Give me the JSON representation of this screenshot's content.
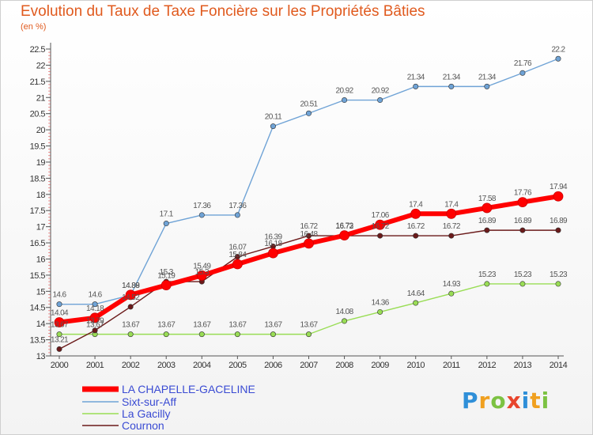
{
  "chart_data": {
    "type": "line",
    "title": "Evolution du Taux de Taxe Foncière sur les Propriétés Bâties",
    "subtitle": "(en %)",
    "x": [
      "2000",
      "2001",
      "2002",
      "2003",
      "2004",
      "2005",
      "2006",
      "2007",
      "2008",
      "2009",
      "2010",
      "2011",
      "2012",
      "2013",
      "2014"
    ],
    "ylim": [
      13,
      22.5
    ],
    "yticks": [
      "13",
      "13.5",
      "14",
      "14.5",
      "15",
      "15.5",
      "16",
      "16.5",
      "17",
      "17.5",
      "18",
      "18.5",
      "19",
      "19.5",
      "20",
      "20.5",
      "21",
      "21.5",
      "22",
      "22.5"
    ],
    "grid": false,
    "legend_position": "bottom-left",
    "series": [
      {
        "name": "LA CHAPELLE-GACELINE",
        "color": "#ff0000",
        "values": [
          14.04,
          14.18,
          14.89,
          15.19,
          15.49,
          15.84,
          16.18,
          16.48,
          16.73,
          17.06,
          17.4,
          17.4,
          17.58,
          17.76,
          17.94
        ]
      },
      {
        "name": "Sixt-sur-Aff",
        "color": "#6fa3d6",
        "values": [
          14.6,
          14.6,
          14.88,
          17.1,
          17.36,
          17.36,
          20.11,
          20.51,
          20.92,
          20.92,
          21.34,
          21.34,
          21.34,
          21.76,
          22.2
        ]
      },
      {
        "name": "La Gacilly",
        "color": "#99dd55",
        "values": [
          13.67,
          13.67,
          13.67,
          13.67,
          13.67,
          13.67,
          13.67,
          13.67,
          14.08,
          14.36,
          14.64,
          14.93,
          15.23,
          15.23,
          15.23
        ]
      },
      {
        "name": "Cournon",
        "color": "#6b1a1a",
        "values": [
          13.21,
          13.79,
          14.52,
          15.3,
          15.3,
          16.07,
          16.39,
          16.72,
          16.72,
          16.72,
          16.72,
          16.72,
          16.89,
          16.89,
          16.89
        ]
      }
    ],
    "data_labels": [
      {
        "series": 1,
        "i": 0,
        "text": "14.6"
      },
      {
        "series": 1,
        "i": 1,
        "text": "14.6"
      },
      {
        "series": 1,
        "i": 2,
        "text": "14.88"
      },
      {
        "series": 1,
        "i": 3,
        "text": "17.1"
      },
      {
        "series": 1,
        "i": 4,
        "text": "17.36"
      },
      {
        "series": 1,
        "i": 5,
        "text": "17.36"
      },
      {
        "series": 1,
        "i": 6,
        "text": "20.11"
      },
      {
        "series": 1,
        "i": 7,
        "text": "20.51"
      },
      {
        "series": 1,
        "i": 8,
        "text": "20.92"
      },
      {
        "series": 1,
        "i": 9,
        "text": "20.92"
      },
      {
        "series": 1,
        "i": 10,
        "text": "21.34"
      },
      {
        "series": 1,
        "i": 11,
        "text": "21.34"
      },
      {
        "series": 1,
        "i": 12,
        "text": "21.34"
      },
      {
        "series": 1,
        "i": 13,
        "text": "21.76"
      },
      {
        "series": 1,
        "i": 14,
        "text": "22.2"
      },
      {
        "series": 0,
        "i": 0,
        "text": "14.04"
      },
      {
        "series": 0,
        "i": 1,
        "text": "14.18"
      },
      {
        "series": 0,
        "i": 2,
        "text": "14.89"
      },
      {
        "series": 0,
        "i": 3,
        "text": "15.19"
      },
      {
        "series": 0,
        "i": 4,
        "text": "15.49"
      },
      {
        "series": 0,
        "i": 5,
        "text": "15.84"
      },
      {
        "series": 0,
        "i": 6,
        "text": "16.18"
      },
      {
        "series": 0,
        "i": 7,
        "text": "16.48"
      },
      {
        "series": 0,
        "i": 8,
        "text": "16.73"
      },
      {
        "series": 0,
        "i": 9,
        "text": "17.06"
      },
      {
        "series": 0,
        "i": 10,
        "text": "17.4"
      },
      {
        "series": 0,
        "i": 11,
        "text": "17.4"
      },
      {
        "series": 0,
        "i": 12,
        "text": "17.58"
      },
      {
        "series": 0,
        "i": 13,
        "text": "17.76"
      },
      {
        "series": 0,
        "i": 14,
        "text": "17.94"
      },
      {
        "series": 3,
        "i": 0,
        "text": "13.21"
      },
      {
        "series": 3,
        "i": 1,
        "text": "13.79"
      },
      {
        "series": 3,
        "i": 2,
        "text": "14.52"
      },
      {
        "series": 3,
        "i": 3,
        "text": "15.3"
      },
      {
        "series": 3,
        "i": 4,
        "text": "15.3"
      },
      {
        "series": 3,
        "i": 5,
        "text": "16.07"
      },
      {
        "series": 3,
        "i": 6,
        "text": "16.39"
      },
      {
        "series": 3,
        "i": 7,
        "text": "16.72"
      },
      {
        "series": 3,
        "i": 8,
        "text": "16.72"
      },
      {
        "series": 3,
        "i": 9,
        "text": "16.72"
      },
      {
        "series": 3,
        "i": 10,
        "text": "16.72"
      },
      {
        "series": 3,
        "i": 11,
        "text": "16.72"
      },
      {
        "series": 3,
        "i": 12,
        "text": "16.89"
      },
      {
        "series": 3,
        "i": 13,
        "text": "16.89"
      },
      {
        "series": 3,
        "i": 14,
        "text": "16.89"
      },
      {
        "series": 2,
        "i": 0,
        "text": "13.67"
      },
      {
        "series": 2,
        "i": 1,
        "text": "13.67"
      },
      {
        "series": 2,
        "i": 2,
        "text": "13.67"
      },
      {
        "series": 2,
        "i": 3,
        "text": "13.67"
      },
      {
        "series": 2,
        "i": 4,
        "text": "13.67"
      },
      {
        "series": 2,
        "i": 5,
        "text": "13.67"
      },
      {
        "series": 2,
        "i": 6,
        "text": "13.67"
      },
      {
        "series": 2,
        "i": 7,
        "text": "13.67"
      },
      {
        "series": 2,
        "i": 8,
        "text": "14.08"
      },
      {
        "series": 2,
        "i": 9,
        "text": "14.36"
      },
      {
        "series": 2,
        "i": 10,
        "text": "14.64"
      },
      {
        "series": 2,
        "i": 11,
        "text": "14.93"
      },
      {
        "series": 2,
        "i": 12,
        "text": "15.23"
      },
      {
        "series": 2,
        "i": 13,
        "text": "15.23"
      },
      {
        "series": 2,
        "i": 14,
        "text": "15.23"
      }
    ]
  },
  "logo": {
    "letters": [
      "P",
      "r",
      "o",
      "x",
      "i",
      "t",
      "i"
    ],
    "colors": [
      "#2f8fd8",
      "#f0a020",
      "#7cc242",
      "#e8452c",
      "#2f8fd8",
      "#f0a020",
      "#7cc242"
    ]
  }
}
